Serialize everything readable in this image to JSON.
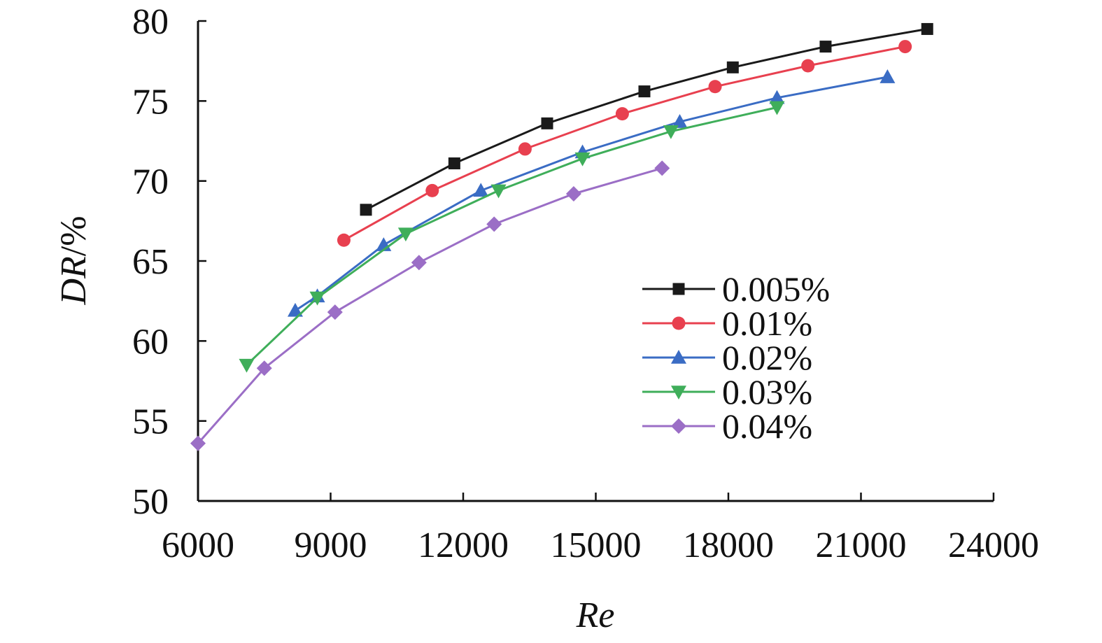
{
  "chart_data": {
    "type": "line",
    "title": "",
    "xlabel": "Re",
    "ylabel_italic": "DR",
    "ylabel_suffix": "/%",
    "xlim": [
      6000,
      24000
    ],
    "ylim": [
      50,
      80
    ],
    "xticks": [
      6000,
      9000,
      12000,
      15000,
      18000,
      21000,
      24000
    ],
    "yticks": [
      50,
      55,
      60,
      65,
      70,
      75,
      80
    ],
    "grid": false,
    "legend_position": "center-right",
    "series": [
      {
        "name": "0.005%",
        "color": "#1a1a1a",
        "marker": "square",
        "x": [
          9800,
          11800,
          13900,
          16100,
          18100,
          20200,
          22500
        ],
        "y": [
          68.2,
          71.1,
          73.6,
          75.6,
          77.1,
          78.4,
          79.5
        ]
      },
      {
        "name": "0.01%",
        "color": "#e8404f",
        "marker": "circle",
        "x": [
          9300,
          11300,
          13400,
          15600,
          17700,
          19800,
          22000
        ],
        "y": [
          66.3,
          69.4,
          72.0,
          74.2,
          75.9,
          77.2,
          78.4
        ]
      },
      {
        "name": "0.02%",
        "color": "#3a6cc4",
        "marker": "triangle-up",
        "x": [
          8200,
          8700,
          10200,
          12400,
          14700,
          16900,
          19100,
          21600
        ],
        "y": [
          61.9,
          62.8,
          66.0,
          69.4,
          71.8,
          73.7,
          75.2,
          76.5
        ]
      },
      {
        "name": "0.03%",
        "color": "#3fae5a",
        "marker": "triangle-down",
        "x": [
          7100,
          8700,
          10700,
          12800,
          14700,
          16700,
          19100
        ],
        "y": [
          58.5,
          62.7,
          66.7,
          69.4,
          71.4,
          73.1,
          74.6
        ]
      },
      {
        "name": "0.04%",
        "color": "#9b6ec6",
        "marker": "diamond",
        "x": [
          6000,
          7500,
          9100,
          11000,
          12700,
          14500,
          16500
        ],
        "y": [
          53.6,
          58.3,
          61.8,
          64.9,
          67.3,
          69.2,
          70.8
        ]
      }
    ]
  }
}
